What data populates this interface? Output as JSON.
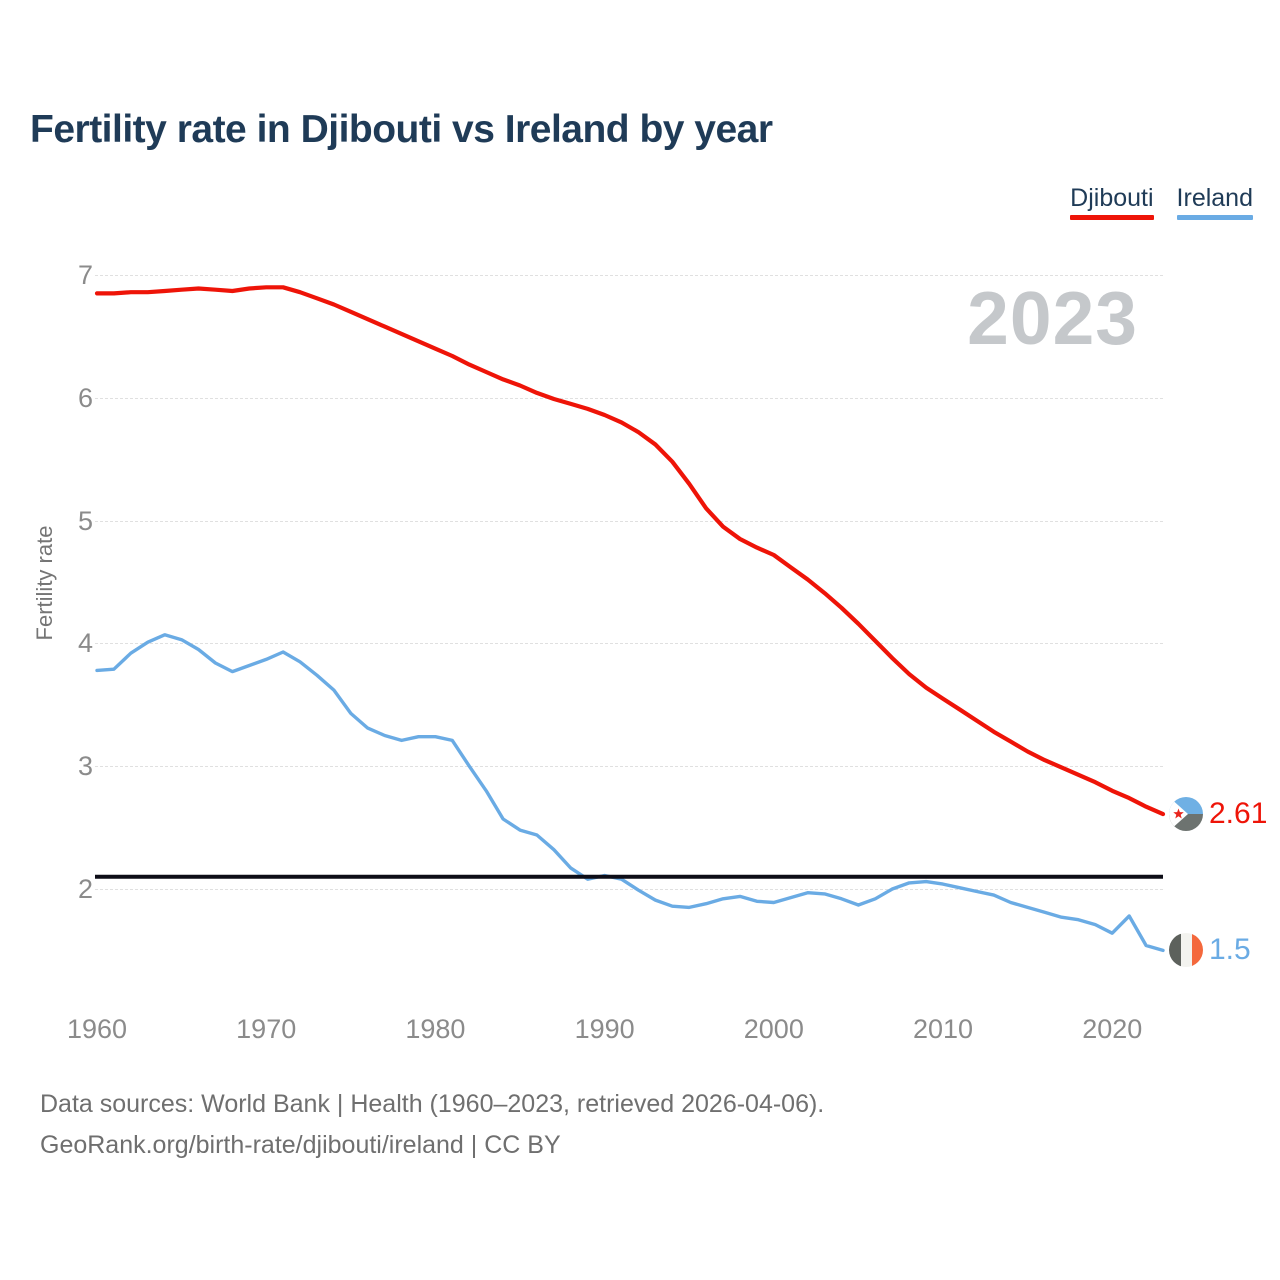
{
  "page": {
    "title": "Fertility rate in Djibouti vs Ireland by year",
    "watermark": "2023",
    "footer": {
      "line1": "Data sources: World Bank | Health (1960–2023, retrieved 2026-04-06).",
      "line2": "GeoRank.org/birth-rate/djibouti/ireland | CC BY"
    }
  },
  "legend": [
    {
      "label": "Djibouti",
      "color": "#ee1408"
    },
    {
      "label": "Ireland",
      "color": "#6aabe4"
    }
  ],
  "chart_data": {
    "type": "line",
    "title": "Fertility rate in Djibouti vs Ireland by year",
    "xlabel": "",
    "ylabel": "Fertility rate",
    "x_start_year": 1960,
    "x_end_year": 2023,
    "x_ticks": [
      1960,
      1970,
      1980,
      1990,
      2000,
      2010,
      2020
    ],
    "y_ticks": [
      7,
      6,
      5,
      4,
      3,
      2
    ],
    "ylim": [
      1.4,
      7.1
    ],
    "grid": "horizontal-only",
    "legend_position": "top-right",
    "reference_line": {
      "value": 2.1,
      "color": "#0d0d17"
    },
    "series": [
      {
        "name": "Djibouti",
        "color": "#ee1408",
        "end_label": "2.61",
        "end_value": 2.61,
        "flag": "djibouti",
        "values": [
          6.85,
          6.85,
          6.86,
          6.86,
          6.87,
          6.88,
          6.89,
          6.88,
          6.87,
          6.89,
          6.9,
          6.9,
          6.86,
          6.81,
          6.76,
          6.7,
          6.64,
          6.58,
          6.52,
          6.46,
          6.4,
          6.34,
          6.27,
          6.21,
          6.15,
          6.1,
          6.04,
          5.99,
          5.95,
          5.91,
          5.86,
          5.8,
          5.72,
          5.62,
          5.48,
          5.3,
          5.1,
          4.95,
          4.85,
          4.78,
          4.72,
          4.62,
          4.52,
          4.41,
          4.29,
          4.16,
          4.02,
          3.88,
          3.75,
          3.64,
          3.55,
          3.46,
          3.37,
          3.28,
          3.2,
          3.12,
          3.05,
          2.99,
          2.93,
          2.87,
          2.8,
          2.74,
          2.67,
          2.61
        ]
      },
      {
        "name": "Ireland",
        "color": "#6aabe4",
        "end_label": "1.5",
        "end_value": 1.5,
        "flag": "ireland",
        "values": [
          3.78,
          3.79,
          3.92,
          4.01,
          4.07,
          4.03,
          3.95,
          3.84,
          3.77,
          3.82,
          3.87,
          3.93,
          3.85,
          3.74,
          3.62,
          3.43,
          3.31,
          3.25,
          3.21,
          3.24,
          3.24,
          3.21,
          3.0,
          2.8,
          2.57,
          2.48,
          2.44,
          2.32,
          2.17,
          2.08,
          2.11,
          2.08,
          1.99,
          1.91,
          1.86,
          1.85,
          1.88,
          1.92,
          1.94,
          1.9,
          1.89,
          1.93,
          1.97,
          1.96,
          1.92,
          1.87,
          1.92,
          2.0,
          2.05,
          2.06,
          2.04,
          2.01,
          1.98,
          1.95,
          1.89,
          1.85,
          1.81,
          1.77,
          1.75,
          1.71,
          1.64,
          1.78,
          1.54,
          1.5
        ]
      }
    ]
  }
}
